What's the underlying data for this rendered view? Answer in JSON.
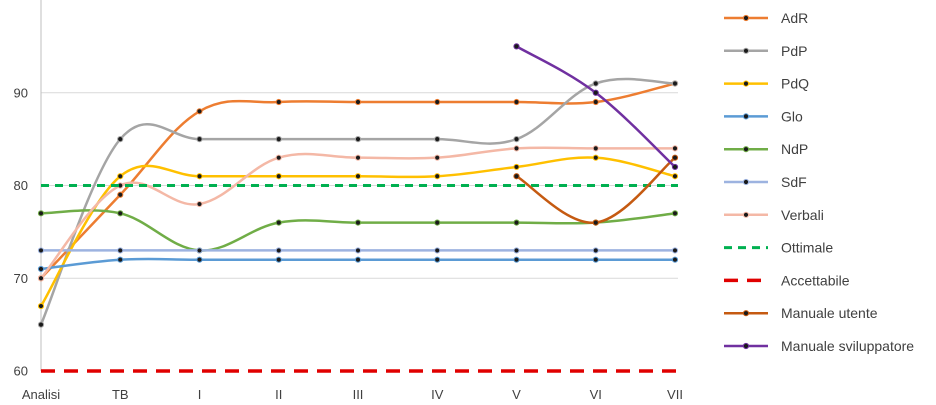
{
  "chart_data": {
    "type": "line",
    "title": "",
    "xlabel": "",
    "ylabel": "",
    "categories": [
      "Analisi",
      "TB",
      "I",
      "II",
      "III",
      "IV",
      "V",
      "VI",
      "VII"
    ],
    "ylim": [
      60,
      100
    ],
    "yticks": [
      60,
      70,
      80,
      90
    ],
    "grid": true,
    "legend_position": "right",
    "series": [
      {
        "name": "AdR",
        "color": "#ED7D31",
        "smooth": true,
        "values": [
          70,
          79,
          88,
          89,
          89,
          89,
          89,
          89,
          91
        ]
      },
      {
        "name": "PdP",
        "color": "#A5A5A5",
        "smooth": true,
        "values": [
          65,
          85,
          85,
          85,
          85,
          85,
          85,
          91,
          91
        ]
      },
      {
        "name": "PdQ",
        "color": "#FFC000",
        "smooth": true,
        "values": [
          67,
          81,
          81,
          81,
          81,
          81,
          82,
          83,
          81
        ]
      },
      {
        "name": "Glo",
        "color": "#5B9BD5",
        "smooth": true,
        "values": [
          71,
          72,
          72,
          72,
          72,
          72,
          72,
          72,
          72
        ]
      },
      {
        "name": "NdP",
        "color": "#70AD47",
        "smooth": true,
        "values": [
          77,
          77,
          73,
          76,
          76,
          76,
          76,
          76,
          77
        ]
      },
      {
        "name": "SdF",
        "color": "#9DB3E0",
        "smooth": true,
        "values": [
          73,
          73,
          73,
          73,
          73,
          73,
          73,
          73,
          73
        ]
      },
      {
        "name": "Verbali",
        "color": "#F4B8A6",
        "smooth": true,
        "values": [
          70,
          80,
          78,
          83,
          83,
          83,
          84,
          84,
          84
        ]
      },
      {
        "name": "Ottimale",
        "color": "#00B050",
        "dash": "8,6",
        "width": 3,
        "markers": false,
        "values": [
          80,
          80,
          80,
          80,
          80,
          80,
          80,
          80,
          80
        ]
      },
      {
        "name": "Accettabile",
        "color": "#E00000",
        "dash": "14,9",
        "width": 3.5,
        "markers": false,
        "values": [
          60,
          60,
          60,
          60,
          60,
          60,
          60,
          60,
          60
        ]
      },
      {
        "name": "Manuale utente",
        "color": "#C55A11",
        "smooth": true,
        "values": [
          null,
          null,
          null,
          null,
          null,
          null,
          81,
          76,
          83
        ]
      },
      {
        "name": "Manuale sviluppatore",
        "color": "#7030A0",
        "smooth": true,
        "values": [
          null,
          null,
          null,
          null,
          null,
          null,
          95,
          90,
          82
        ]
      }
    ]
  }
}
